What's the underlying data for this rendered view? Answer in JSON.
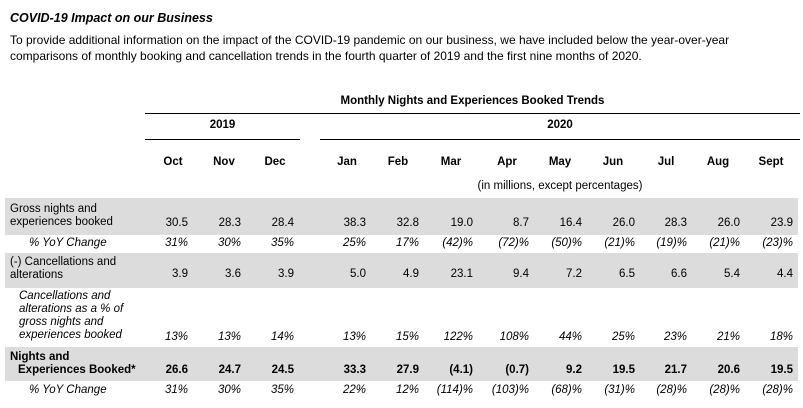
{
  "heading": "COVID-19 Impact on our Business",
  "intro": "To provide additional information on the impact of the COVID-19 pandemic on our business, we have included below the year-over-year comparisons of monthly booking and cancellation trends in the fourth quarter of 2019 and the first nine months of 2020.",
  "table": {
    "title": "Monthly Nights and Experiences Booked Trends",
    "years": [
      "2019",
      "2020"
    ],
    "months": [
      "Oct",
      "Nov",
      "Dec",
      "Jan",
      "Feb",
      "Mar",
      "Apr",
      "May",
      "Jun",
      "Jul",
      "Aug",
      "Sept"
    ],
    "units_note": "(in millions, except percentages)",
    "rows": [
      {
        "label1": "Gross nights and",
        "label2": "experiences booked",
        "values": [
          "30.5",
          "28.3",
          "28.4",
          "38.3",
          "32.8",
          "19.0",
          "8.7",
          "16.4",
          "26.0",
          "28.3",
          "26.0",
          "23.9"
        ]
      },
      {
        "label1": "% YoY Change",
        "values": [
          "31%",
          "30%",
          "35%",
          "25%",
          "17%",
          "(42)%",
          "(72)%",
          "(50)%",
          "(21)%",
          "(19)%",
          "(21)%",
          "(23)%"
        ]
      },
      {
        "label1": "(-) Cancellations and",
        "label2": "alterations",
        "values": [
          "3.9",
          "3.6",
          "3.9",
          "5.0",
          "4.9",
          "23.1",
          "9.4",
          "7.2",
          "6.5",
          "6.6",
          "5.4",
          "4.4"
        ]
      },
      {
        "label1": "Cancellations and",
        "label2": "alterations as a % of",
        "label3": "gross nights and",
        "label4": "experiences booked",
        "values": [
          "13%",
          "13%",
          "14%",
          "13%",
          "15%",
          "122%",
          "108%",
          "44%",
          "25%",
          "23%",
          "21%",
          "18%"
        ]
      },
      {
        "label1": "Nights and",
        "label2": "Experiences Booked*",
        "values": [
          "26.6",
          "24.7",
          "24.5",
          "33.3",
          "27.9",
          "(4.1)",
          "(0.7)",
          "9.2",
          "19.5",
          "21.7",
          "20.6",
          "19.5"
        ]
      },
      {
        "label1": "% YoY Change",
        "values": [
          "31%",
          "30%",
          "35%",
          "22%",
          "12%",
          "(114)%",
          "(103)%",
          "(68)%",
          "(31)%",
          "(28)%",
          "(28)%",
          "(28)%"
        ]
      }
    ]
  }
}
